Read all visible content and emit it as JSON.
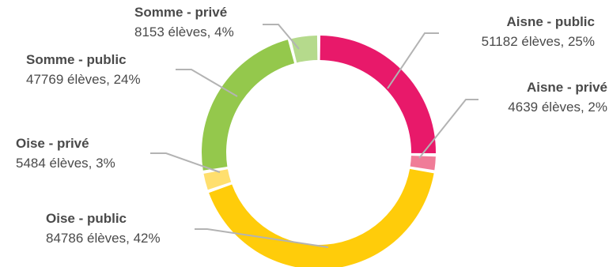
{
  "chart_data": {
    "type": "pie",
    "variant": "donut",
    "unit_label": "élèves",
    "slices": [
      {
        "name": "Aisne - public",
        "value": 51182,
        "percent": "25%",
        "value_text": "51182 élèves, 25%",
        "color": "#e8196a"
      },
      {
        "name": "Aisne - privé",
        "value": 4639,
        "percent": "2%",
        "value_text": "4639 élèves, 2%",
        "color": "#f07c98"
      },
      {
        "name": "Oise - public",
        "value": 84786,
        "percent": "42%",
        "value_text": "84786 élèves, 42%",
        "color": "#ffcc0a"
      },
      {
        "name": "Oise - privé",
        "value": 5484,
        "percent": "3%",
        "value_text": "5484 élèves, 3%",
        "color": "#ffdf6e"
      },
      {
        "name": "Somme - public",
        "value": 47769,
        "percent": "24%",
        "value_text": "47769 élèves, 24%",
        "color": "#94c84c"
      },
      {
        "name": "Somme - privé",
        "value": 8153,
        "percent": "4%",
        "value_text": "8153 élèves, 4%",
        "color": "#b5da8c"
      }
    ],
    "leader_color": "#b3b3b3",
    "legend": "none"
  }
}
